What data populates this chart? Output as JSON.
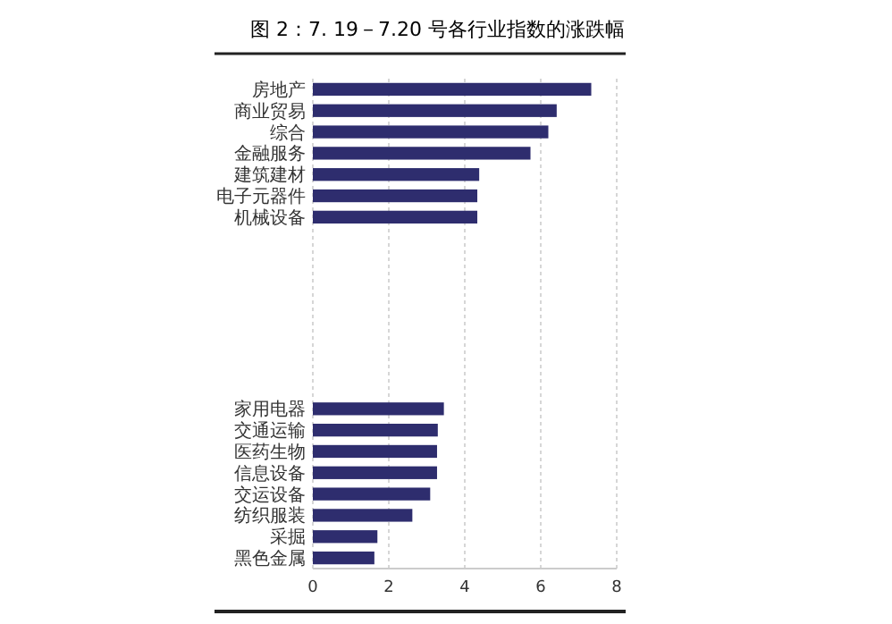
{
  "chart_data": {
    "type": "bar",
    "orientation": "horizontal",
    "title": "图 2：7. 19－7.20 号各行业指数的涨跌幅",
    "categories": [
      "房地产",
      "商业贸易",
      "综合",
      "金融服务",
      "建筑建材",
      "电子元器件",
      "机械设备",
      null,
      null,
      null,
      null,
      null,
      null,
      null,
      null,
      "家用电器",
      "交通运输",
      "医药生物",
      "信息设备",
      "交运设备",
      "纺织服装",
      "采掘",
      "黑色金属"
    ],
    "values": [
      7.33,
      6.42,
      6.2,
      5.73,
      4.38,
      4.33,
      4.33,
      null,
      null,
      null,
      null,
      null,
      null,
      null,
      null,
      3.45,
      3.29,
      3.27,
      3.27,
      3.09,
      2.62,
      1.7,
      1.62
    ],
    "color": "#2e2d6e",
    "xlim": [
      0,
      8
    ],
    "xticks": [
      0,
      2,
      4,
      6,
      8
    ],
    "grid": "x"
  }
}
